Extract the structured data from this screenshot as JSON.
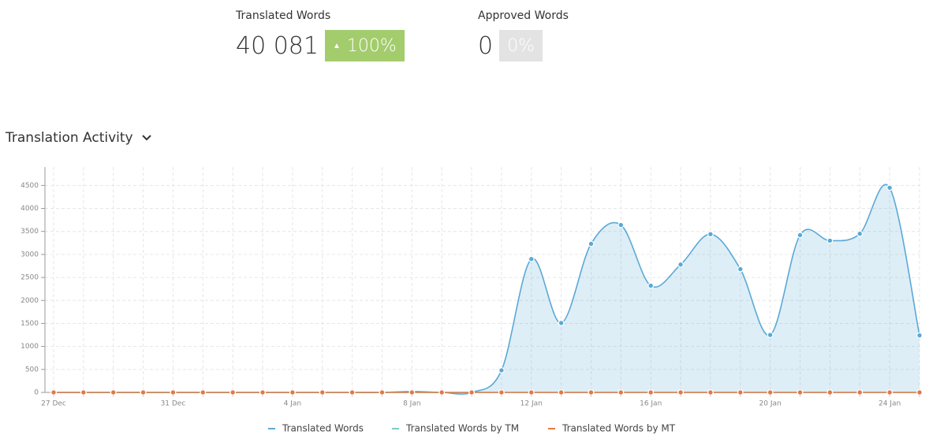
{
  "stats": [
    {
      "label": "Translated Words",
      "value": "40 081",
      "badge": "100%"
    },
    {
      "label": "Approved Words",
      "value": "0",
      "badge": "0%"
    }
  ],
  "section_title": "Translation Activity",
  "chart_data": {
    "type": "line",
    "categories": [
      "27 Dec",
      null,
      null,
      null,
      "31 Dec",
      null,
      null,
      null,
      "4 Jan",
      null,
      null,
      null,
      "8 Jan",
      null,
      null,
      null,
      "12 Jan",
      null,
      null,
      null,
      "16 Jan",
      null,
      null,
      null,
      "20 Jan",
      null,
      null,
      null,
      "24 Jan",
      null
    ],
    "series": [
      {
        "name": "Translated Words",
        "color": "#5aa9d6",
        "values": [
          0,
          0,
          0,
          0,
          0,
          0,
          0,
          0,
          0,
          0,
          0,
          0,
          20,
          0,
          0,
          480,
          2900,
          1510,
          3230,
          3640,
          2320,
          2780,
          3440,
          2680,
          1250,
          3420,
          3300,
          3450,
          4450,
          1240
        ]
      },
      {
        "name": "Translated Words by TM",
        "color": "#7ccbc2",
        "values": [
          0,
          0,
          0,
          0,
          0,
          0,
          0,
          0,
          0,
          0,
          0,
          0,
          0,
          0,
          0,
          0,
          0,
          0,
          0,
          0,
          0,
          0,
          0,
          0,
          0,
          0,
          0,
          0,
          0,
          0
        ]
      },
      {
        "name": "Translated Words by MT",
        "color": "#e07a46",
        "values": [
          0,
          0,
          0,
          0,
          0,
          0,
          0,
          0,
          0,
          0,
          0,
          0,
          0,
          0,
          0,
          0,
          0,
          0,
          0,
          0,
          0,
          0,
          0,
          0,
          0,
          0,
          0,
          0,
          0,
          0
        ]
      }
    ],
    "ylim": [
      0,
      4900
    ],
    "yticks": [
      0,
      500,
      1000,
      1500,
      2000,
      2500,
      3000,
      3500,
      4000,
      4500
    ],
    "grid": true
  }
}
